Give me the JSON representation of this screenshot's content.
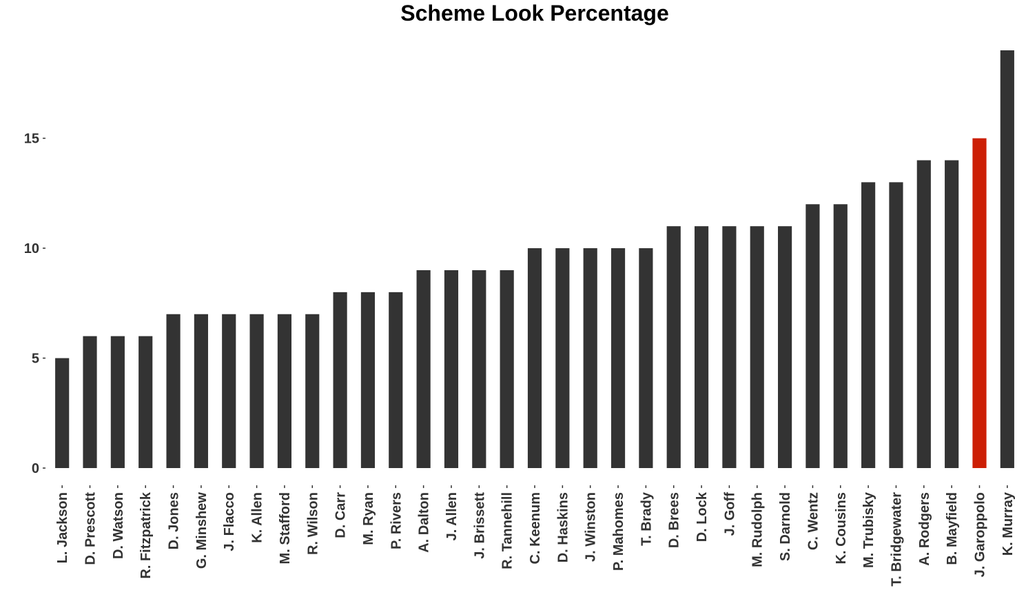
{
  "chart_data": {
    "type": "bar",
    "title": "Scheme Look Percentage",
    "xlabel": "",
    "ylabel": "",
    "categories": [
      "L. Jackson",
      "D. Prescott",
      "D. Watson",
      "R. Fitzpatrick",
      "D. Jones",
      "G. Minshew",
      "J. Flacco",
      "K. Allen",
      "M. Stafford",
      "R. Wilson",
      "D. Carr",
      "M. Ryan",
      "P. Rivers",
      "A. Dalton",
      "J. Allen",
      "J. Brissett",
      "R. Tannehill",
      "C. Keenum",
      "D. Haskins",
      "J. Winston",
      "P. Mahomes",
      "T. Brady",
      "D. Brees",
      "D. Lock",
      "J. Goff",
      "M. Rudolph",
      "S. Darnold",
      "C. Wentz",
      "K. Cousins",
      "M. Trubisky",
      "T. Bridgewater",
      "A. Rodgers",
      "B. Mayfield",
      "J. Garoppolo",
      "K. Murray"
    ],
    "values": [
      5,
      6,
      6,
      6,
      7,
      7,
      7,
      7,
      7,
      7,
      8,
      8,
      8,
      9,
      9,
      9,
      9,
      10,
      10,
      10,
      10,
      10,
      11,
      11,
      11,
      11,
      11,
      12,
      12,
      13,
      13,
      14,
      14,
      15,
      19
    ],
    "highlight": "J. Garoppolo",
    "ylim": [
      0,
      19
    ],
    "yticks": [
      0,
      5,
      10,
      15
    ],
    "grid": false,
    "legend": "none",
    "colors": {
      "bar": "#333333",
      "highlight": "#cc1f05"
    }
  }
}
